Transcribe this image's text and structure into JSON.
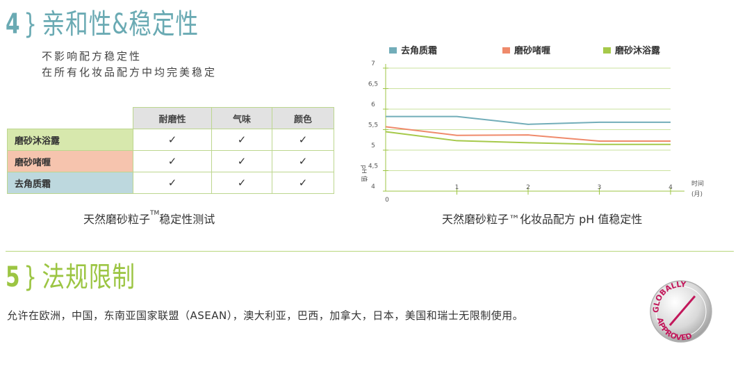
{
  "section4": {
    "number": "4",
    "brace": "}",
    "title": "亲和性&稳定性",
    "intro_line1": "不影响配方稳定性",
    "intro_line2": "在所有化妆品配方中均完美稳定",
    "table": {
      "headers": [
        "耐磨性",
        "气味",
        "颜色"
      ],
      "rows": [
        {
          "label": "磨砂沐浴露",
          "cells": [
            "✓",
            "✓",
            "✓"
          ]
        },
        {
          "label": "磨砂啫喱",
          "cells": [
            "✓",
            "✓",
            "✓"
          ]
        },
        {
          "label": "去角质霜",
          "cells": [
            "✓",
            "✓",
            "✓"
          ]
        }
      ]
    },
    "caption_table_a": "天然磨砂粒子",
    "caption_table_tm": "TM",
    "caption_table_b": "稳定性测试",
    "caption_chart": "天然磨砂粒子™化妆品配方 pH 值稳定性"
  },
  "chart_data": {
    "type": "line",
    "x": [
      0,
      1,
      2,
      3,
      4
    ],
    "xticks": [
      "0",
      "1",
      "2",
      "3",
      "4"
    ],
    "xlabel_line1": "时间",
    "xlabel_line2": "(月)",
    "ylabel": "pH 值",
    "ylim": [
      4,
      7
    ],
    "yticks": [
      "4",
      "4,5",
      "5",
      "5,5",
      "6",
      "6,5",
      "7"
    ],
    "ytick_values": [
      4,
      4.5,
      5,
      5.5,
      6,
      6.5,
      7
    ],
    "grid": true,
    "legend_position": "top",
    "series": [
      {
        "name": "去角质霜",
        "color": "#72adb9",
        "values": [
          5.82,
          5.82,
          5.63,
          5.68,
          5.68
        ]
      },
      {
        "name": "磨砂啫喱",
        "color": "#ef8a6b",
        "values": [
          5.57,
          5.36,
          5.37,
          5.22,
          5.22
        ]
      },
      {
        "name": "磨砂沐浴露",
        "color": "#a6c94a",
        "values": [
          5.45,
          5.23,
          5.18,
          5.14,
          5.14
        ]
      }
    ]
  },
  "section5": {
    "number": "5",
    "brace": "}",
    "title": "法规限制",
    "text": "允许在欧洲，中国，东南亚国家联盟（ASEAN），澳大利亚，巴西，加拿大，日本，美国和瑞士无限制使用。",
    "seal_line1": "GLOBALLY",
    "seal_line2": "APPROVED"
  }
}
